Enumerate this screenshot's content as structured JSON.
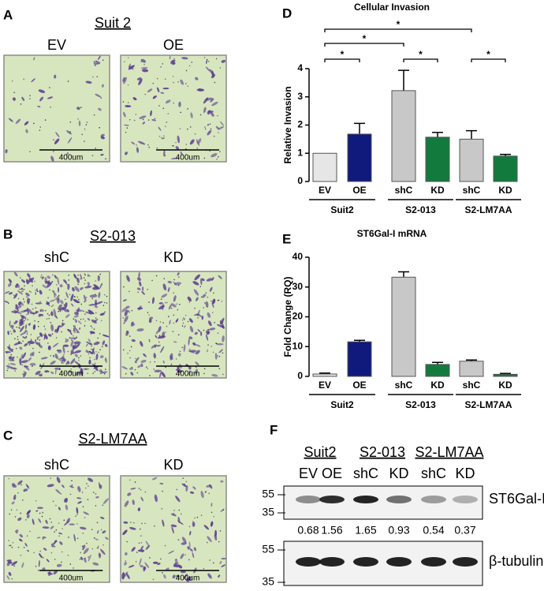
{
  "panels": [
    {
      "letter": "A",
      "title": "Suit 2",
      "images": [
        {
          "label": "EV",
          "scale_bar": "400um"
        },
        {
          "label": "OE",
          "scale_bar": "400um"
        }
      ]
    },
    {
      "letter": "B",
      "title": "S2-013",
      "images": [
        {
          "label": "shC",
          "scale_bar": "400um"
        },
        {
          "label": "KD",
          "scale_bar": "400um"
        }
      ]
    },
    {
      "letter": "C",
      "title": "S2-LM7AA",
      "images": [
        {
          "label": "shC",
          "scale_bar": "400um"
        },
        {
          "label": "KD",
          "scale_bar": "400um"
        }
      ]
    }
  ],
  "chart_data": [
    {
      "type": "bar",
      "letter": "D",
      "title": "Cellular Invasion",
      "y_label": "Relative Invasion",
      "categories": [
        "EV",
        "OE",
        "shC",
        "KD",
        "shC",
        "KD"
      ],
      "values": [
        1.0,
        1.68,
        3.22,
        1.57,
        1.5,
        0.9
      ],
      "errors": [
        0,
        0.38,
        0.72,
        0.17,
        0.3,
        0.06
      ],
      "colors": [
        "#e6e6e6",
        "#0f1a7c",
        "#c8c8c8",
        "#137a3e",
        "#c8c8c8",
        "#137a3e"
      ],
      "groups": [
        {
          "name": "Suit2",
          "span": [
            0,
            1
          ]
        },
        {
          "name": "S2-013",
          "span": [
            2,
            3
          ]
        },
        {
          "name": "S2-LM7AA",
          "span": [
            4,
            5
          ]
        }
      ],
      "brackets": [
        {
          "between": [
            0,
            4
          ],
          "label": "*"
        },
        {
          "between": [
            0,
            2
          ],
          "label": "*"
        },
        {
          "between": [
            0,
            1
          ],
          "label": "*"
        },
        {
          "between": [
            2,
            3
          ],
          "label": "*"
        },
        {
          "between": [
            4,
            5
          ],
          "label": "*"
        }
      ],
      "ylim": [
        0,
        4
      ],
      "yticks": [
        0,
        1,
        2,
        3,
        4
      ]
    },
    {
      "type": "bar",
      "letter": "E",
      "title": "ST6Gal-I mRNA",
      "y_label": "Fold Change (RQ)",
      "categories": [
        "EV",
        "OE",
        "shC",
        "KD",
        "shC",
        "KD"
      ],
      "values": [
        0.8,
        11.6,
        33.3,
        4.0,
        5.1,
        0.7
      ],
      "errors": [
        0.3,
        0.5,
        1.8,
        0.7,
        0.4,
        0.3
      ],
      "colors": [
        "#e6e6e6",
        "#0f1a7c",
        "#c8c8c8",
        "#137a3e",
        "#c8c8c8",
        "#137a3e"
      ],
      "groups": [
        {
          "name": "Suit2",
          "span": [
            0,
            1
          ]
        },
        {
          "name": "S2-013",
          "span": [
            2,
            3
          ]
        },
        {
          "name": "S2-LM7AA",
          "span": [
            4,
            5
          ]
        }
      ],
      "brackets": [],
      "ylim": [
        0,
        40
      ],
      "yticks": [
        0,
        10,
        20,
        30,
        40
      ]
    }
  ],
  "blot": {
    "letter": "F",
    "groups": [
      {
        "name": "Suit2",
        "span": [
          0,
          1
        ]
      },
      {
        "name": "S2-013",
        "span": [
          2,
          3
        ]
      },
      {
        "name": "S2-LM7AA",
        "span": [
          4,
          5
        ]
      }
    ],
    "lanes": [
      "EV",
      "OE",
      "shC",
      "KD",
      "shC",
      "KD"
    ],
    "rows": [
      {
        "name": "ST6Gal-I",
        "markers": [
          55,
          35
        ],
        "quant": [
          0.68,
          1.56,
          1.65,
          0.93,
          0.54,
          0.37
        ]
      },
      {
        "name": "β-tubulin",
        "markers": [
          55,
          35
        ]
      }
    ]
  }
}
